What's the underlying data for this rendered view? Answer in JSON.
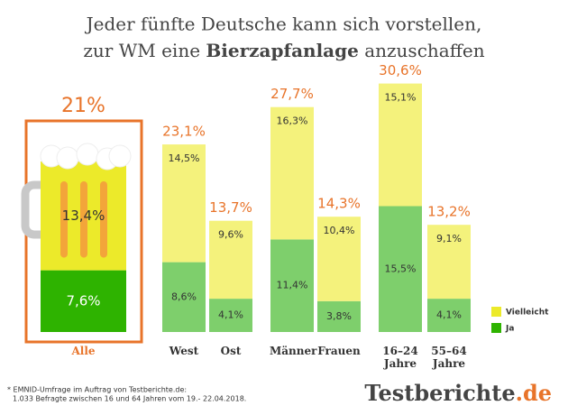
{
  "chart_data": {
    "type": "bar",
    "title_line1": "Jeder fünfte Deutsche kann sich vorstellen,",
    "title_line2_parts": [
      "zur WM eine",
      "Bierzapfanlage",
      "anzuschaffen"
    ],
    "categories": [
      "Alle",
      "West",
      "Ost",
      "Männer",
      "Frauen",
      "16–24 Jahre",
      "55–64 Jahre"
    ],
    "series": [
      {
        "name": "Ja",
        "color": "#7ecf6c",
        "highlight_color": "#2eb300",
        "values": [
          7.6,
          8.6,
          4.1,
          11.4,
          3.8,
          15.5,
          4.1
        ],
        "value_labels": [
          "7,6%",
          "8,6%",
          "4,1%",
          "11,4%",
          "3,8%",
          "15,5%",
          "4,1%"
        ]
      },
      {
        "name": "Vielleicht",
        "color": "#f4f27c",
        "highlight_color": "#ecea2a",
        "values": [
          13.4,
          14.5,
          9.6,
          16.3,
          10.4,
          15.1,
          9.1
        ],
        "value_labels": [
          "13,4%",
          "14,5%",
          "9,6%",
          "16,3%",
          "10,4%",
          "15,1%",
          "9,1%"
        ]
      }
    ],
    "totals": [
      21,
      23.1,
      13.7,
      27.7,
      14.3,
      30.6,
      13.2
    ],
    "total_labels": [
      "21%",
      "23,1%",
      "13,7%",
      "27,7%",
      "14,3%",
      "30,6%",
      "13,2%"
    ],
    "accent_color": "#e8742a",
    "footnote_lines": [
      "* EMNID-Umfrage im Auftrag von Testberichte.de:",
      "1.033 Befragte zwischen 16 und 64 Jahren vom 19.- 22.04.2018."
    ],
    "brand_parts": [
      "Testberichte",
      ".de"
    ]
  }
}
